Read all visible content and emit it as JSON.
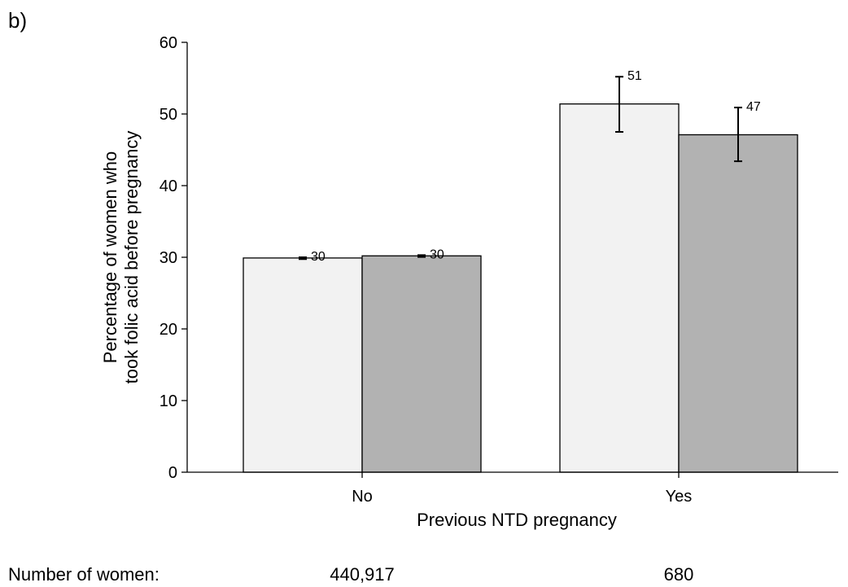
{
  "panel_label": "b)",
  "footer": {
    "label": "Number of women:",
    "counts": [
      "440,917",
      "680"
    ]
  },
  "colors": {
    "series_1": "#f2f2f2",
    "series_2": "#b2b2b2",
    "outline": "#000000"
  },
  "chart_data": {
    "type": "bar",
    "categories": [
      "No",
      "Yes"
    ],
    "series": [
      {
        "values": [
          29.9,
          51.4
        ],
        "error_low": [
          29.8,
          47.5
        ],
        "error_high": [
          30.0,
          55.2
        ],
        "labels": [
          "30",
          "51"
        ],
        "color": "#f2f2f2"
      },
      {
        "values": [
          30.2,
          47.1
        ],
        "error_low": [
          30.1,
          43.4
        ],
        "error_high": [
          30.3,
          50.9
        ],
        "labels": [
          "30",
          "47"
        ],
        "color": "#b2b2b2"
      }
    ],
    "xlabel": "Previous NTD pregnancy",
    "ylabel": [
      "Percentage of women who",
      "took folic acid before pregnancy"
    ],
    "ylim": [
      0,
      60
    ],
    "yticks": [
      0,
      10,
      20,
      30,
      40,
      50,
      60
    ],
    "grid": false,
    "legend": "none"
  }
}
